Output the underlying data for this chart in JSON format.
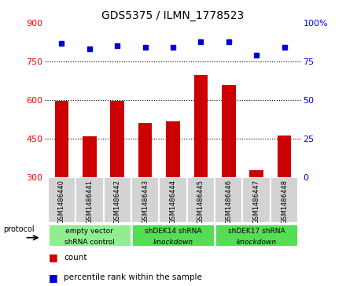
{
  "title": "GDS5375 / ILMN_1778523",
  "samples": [
    "GSM1486440",
    "GSM1486441",
    "GSM1486442",
    "GSM1486443",
    "GSM1486444",
    "GSM1486445",
    "GSM1486446",
    "GSM1486447",
    "GSM1486448"
  ],
  "counts": [
    598,
    460,
    597,
    510,
    518,
    697,
    657,
    328,
    462
  ],
  "percentiles": [
    87,
    83,
    85,
    84,
    84,
    88,
    88,
    79,
    84
  ],
  "ylim_left": [
    300,
    900
  ],
  "ylim_right": [
    0,
    100
  ],
  "yticks_left": [
    300,
    450,
    600,
    750,
    900
  ],
  "yticks_right": [
    0,
    25,
    50,
    75,
    100
  ],
  "bar_color": "#cc0000",
  "dot_color": "#0000cc",
  "bg_sample_row": "#d3d3d3",
  "group_color_light": "#90ee90",
  "group_color_bright": "#55dd55",
  "groups": [
    {
      "label_line1": "empty vector",
      "label_line2": "shRNA control",
      "start": 0,
      "end": 3
    },
    {
      "label_line1": "shDEK14 shRNA",
      "label_line2": "knockdown",
      "start": 3,
      "end": 6
    },
    {
      "label_line1": "shDEK17 shRNA",
      "label_line2": "knockdown",
      "start": 6,
      "end": 9
    }
  ],
  "legend_count_label": "count",
  "legend_pct_label": "percentile rank within the sample",
  "protocol_label": "protocol",
  "x_positions": [
    0,
    1,
    2,
    3,
    4,
    5,
    6,
    7,
    8
  ]
}
